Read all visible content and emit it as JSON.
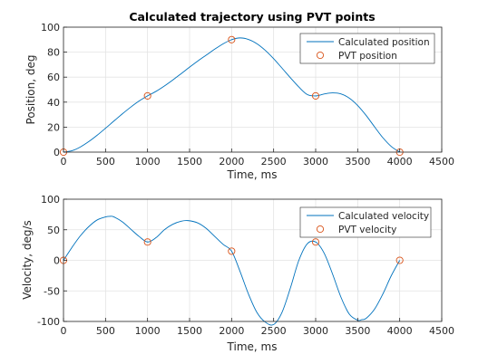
{
  "chart_data": [
    {
      "type": "line",
      "title": "Calculated trajectory using PVT points",
      "xlabel": "Time, ms",
      "ylabel": "Position, deg",
      "xlim": [
        0,
        4500
      ],
      "ylim": [
        0,
        100
      ],
      "xticks": [
        0,
        500,
        1000,
        1500,
        2000,
        2500,
        3000,
        3500,
        4000,
        4500
      ],
      "yticks": [
        0,
        20,
        40,
        60,
        80,
        100
      ],
      "grid": true,
      "legend_location": "top-right",
      "series": [
        {
          "name": "Calculated position",
          "style": "line",
          "color": "#0072BD",
          "x": [
            0,
            100,
            200,
            300,
            400,
            500,
            600,
            700,
            800,
            900,
            1000,
            1100,
            1200,
            1300,
            1400,
            1500,
            1600,
            1700,
            1800,
            1900,
            2000,
            2100,
            2200,
            2300,
            2400,
            2500,
            2600,
            2700,
            2800,
            2900,
            3000,
            3100,
            3200,
            3300,
            3400,
            3500,
            3600,
            3700,
            3800,
            3900,
            4000
          ],
          "y": [
            0,
            1.1,
            4.1,
            8.4,
            13.5,
            19.1,
            24.9,
            30.6,
            36.0,
            40.9,
            45.0,
            48.6,
            52.9,
            57.7,
            62.8,
            68.0,
            73.0,
            77.7,
            82.4,
            86.7,
            90.0,
            91.4,
            90.2,
            86.8,
            81.5,
            74.8,
            67.2,
            59.5,
            52.1,
            46.1,
            45.0,
            46.5,
            47.4,
            46.6,
            43.2,
            37.3,
            29.4,
            20.3,
            11.5,
            4.5,
            0
          ]
        },
        {
          "name": "PVT position",
          "style": "marker",
          "color": "#D95319",
          "x": [
            0,
            1000,
            2000,
            3000,
            4000
          ],
          "y": [
            0,
            45,
            90,
            45,
            0
          ]
        }
      ]
    },
    {
      "type": "line",
      "title": "",
      "xlabel": "Time, ms",
      "ylabel": "Velocity, deg/s",
      "xlim": [
        0,
        4500
      ],
      "ylim": [
        -100,
        100
      ],
      "xticks": [
        0,
        500,
        1000,
        1500,
        2000,
        2500,
        3000,
        3500,
        4000,
        4500
      ],
      "yticks": [
        -100,
        -50,
        0,
        50,
        100
      ],
      "grid": true,
      "legend_location": "top-right",
      "series": [
        {
          "name": "Calculated velocity",
          "style": "line",
          "color": "#0072BD",
          "x": [
            0,
            100,
            200,
            300,
            400,
            500,
            550,
            600,
            700,
            800,
            900,
            1000,
            1100,
            1200,
            1300,
            1400,
            1480,
            1600,
            1700,
            1800,
            1900,
            2000,
            2100,
            2200,
            2300,
            2400,
            2500,
            2600,
            2700,
            2800,
            2900,
            3000,
            3100,
            3200,
            3300,
            3400,
            3500,
            3550,
            3600,
            3700,
            3800,
            3900,
            4000
          ],
          "y": [
            0,
            21,
            40,
            55,
            66,
            71,
            72,
            71,
            63,
            51,
            39,
            30,
            37,
            50,
            59,
            64,
            65,
            61,
            52,
            39,
            26,
            15,
            -18,
            -55,
            -85,
            -101,
            -105,
            -85,
            -45,
            0,
            27,
            30,
            12,
            -22,
            -60,
            -88,
            -98,
            -97,
            -95,
            -80,
            -55,
            -25,
            0
          ]
        },
        {
          "name": "PVT velocity",
          "style": "marker",
          "color": "#D95319",
          "x": [
            0,
            1000,
            2000,
            3000,
            4000
          ],
          "y": [
            0,
            30,
            15,
            30,
            0
          ]
        }
      ]
    }
  ]
}
